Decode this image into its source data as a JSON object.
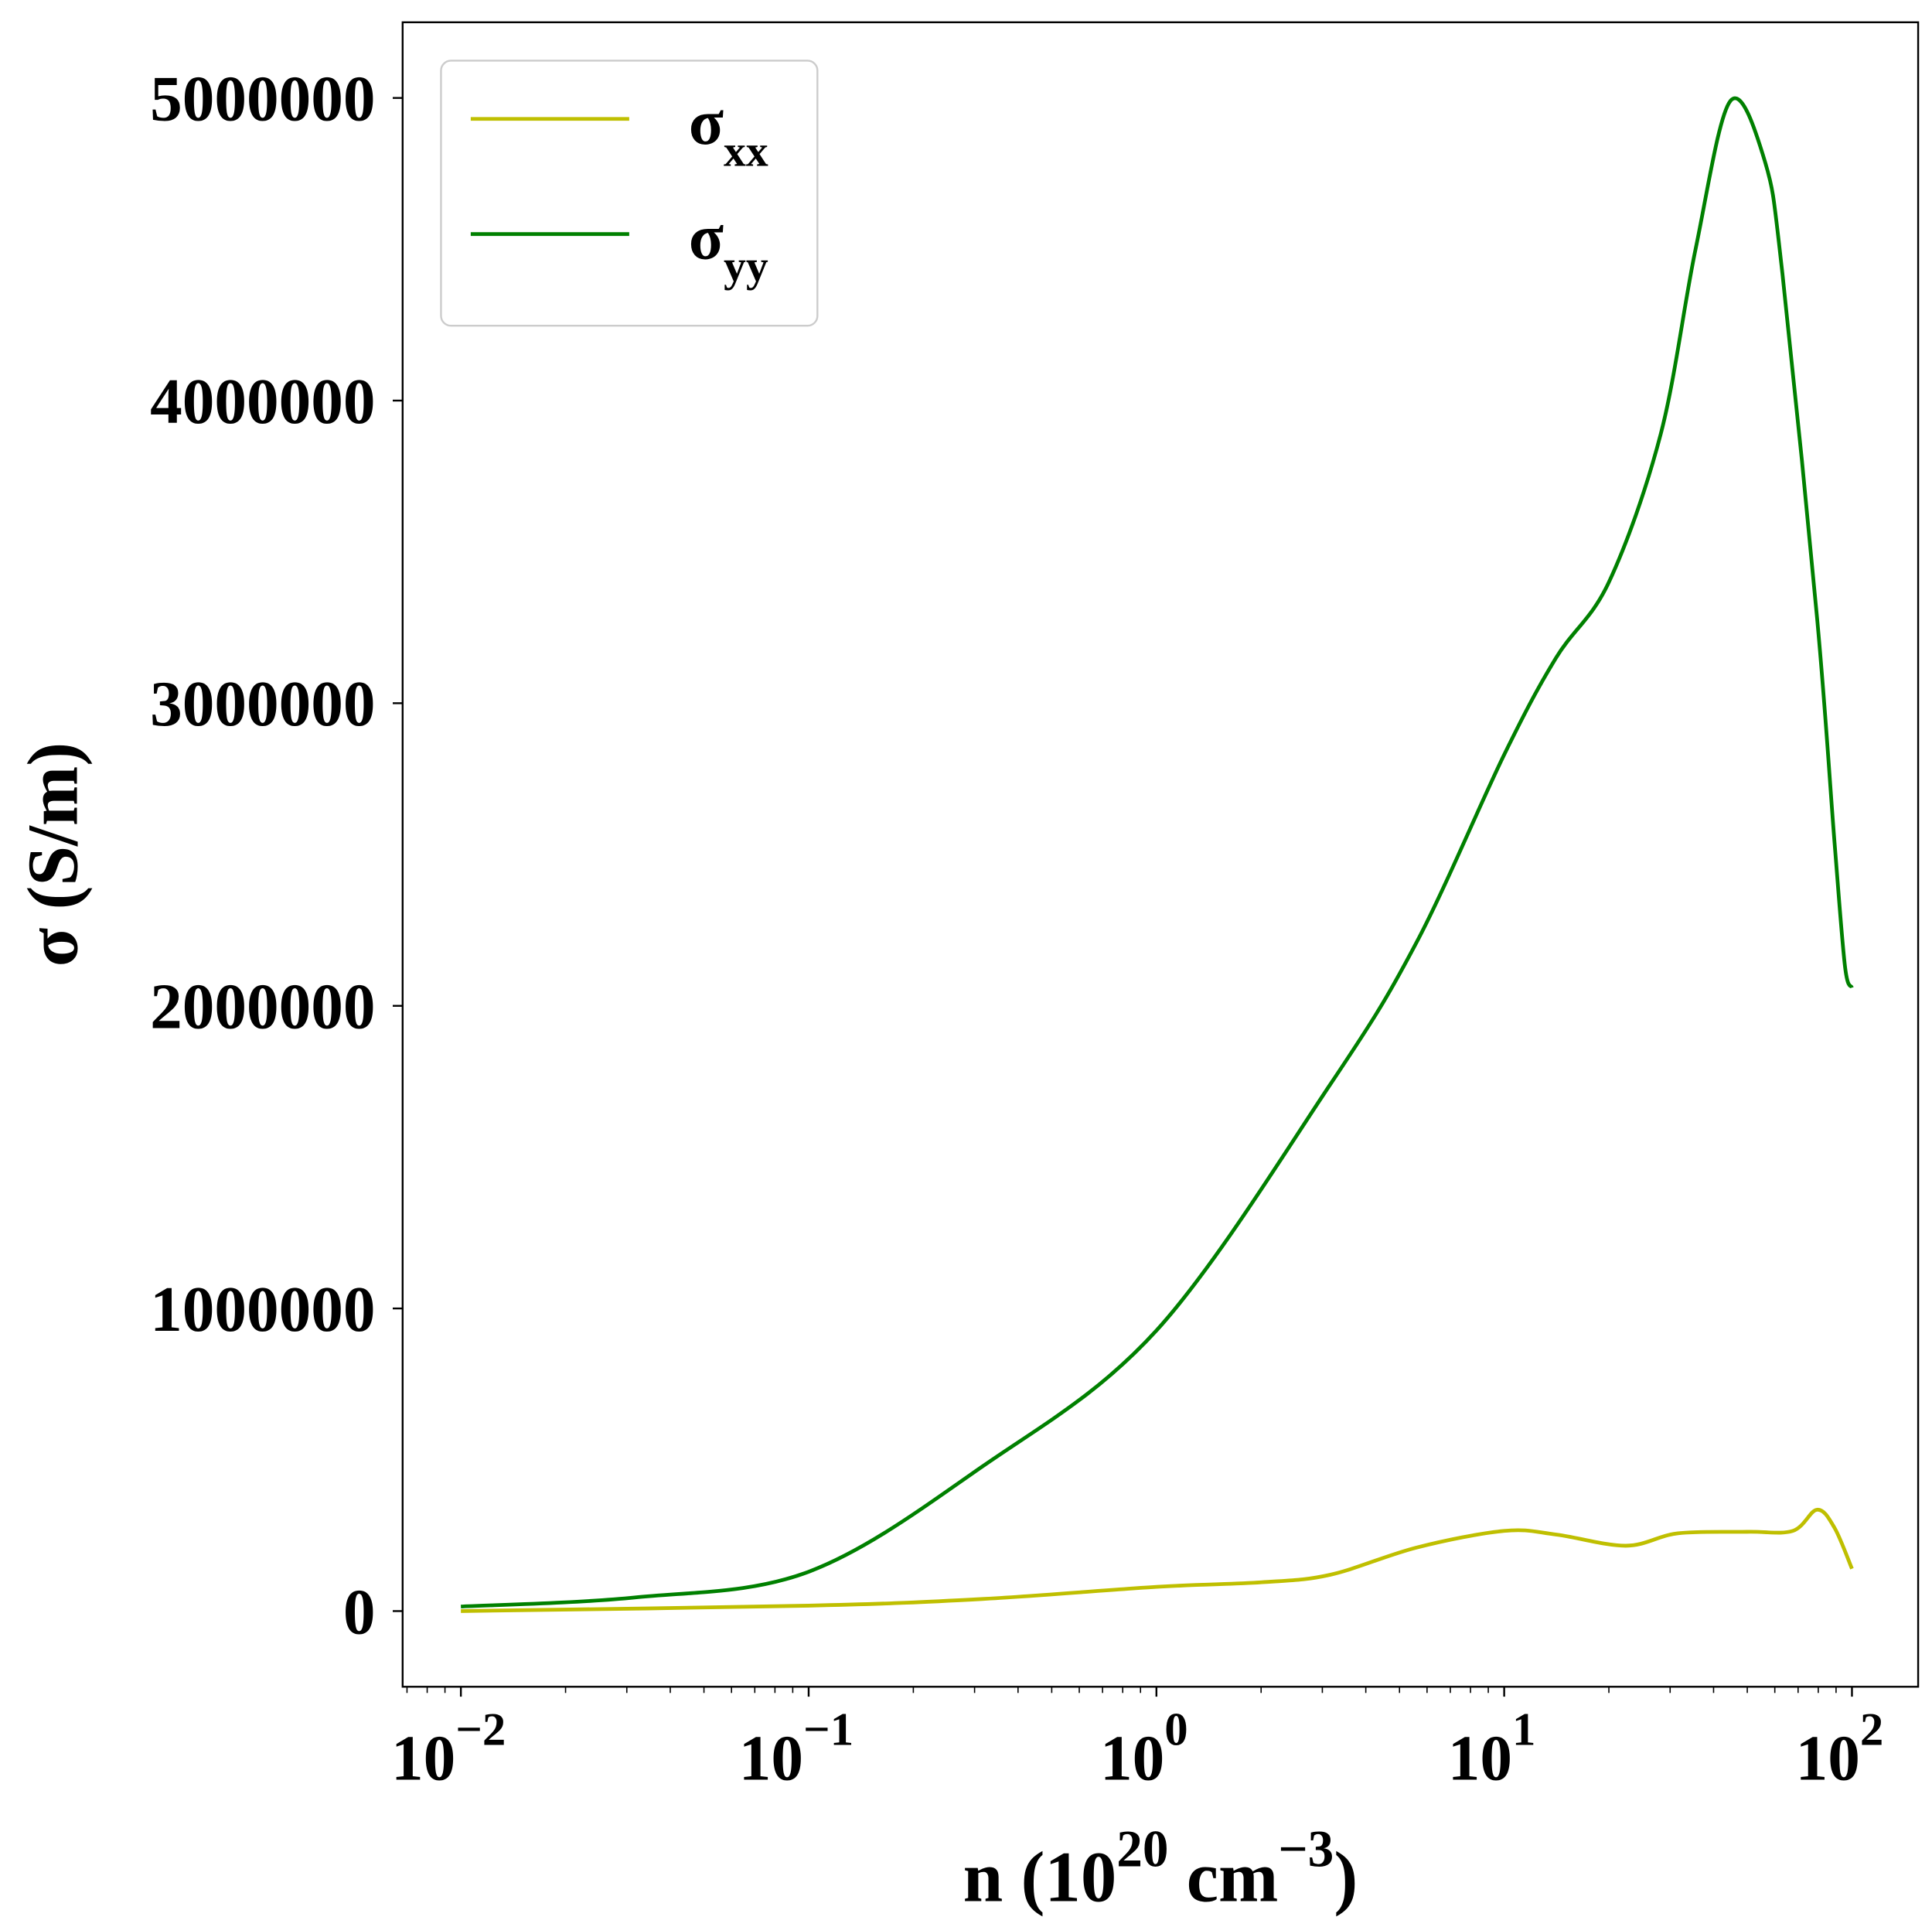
{
  "chart_data": {
    "type": "line",
    "xlabel": "n (10^20 cm^-3)",
    "xlabel_parts": {
      "base": "n (10",
      "exp1": "20",
      "mid": " cm",
      "exp2": "−3",
      "end": ")"
    },
    "ylabel": "σ (S/m)",
    "x_scale": "log",
    "xlim": [
      0.0068,
      155
    ],
    "ylim": [
      -250000,
      5250000
    ],
    "x_ticks": [
      {
        "base": "10",
        "exp": "−2",
        "value": 0.01
      },
      {
        "base": "10",
        "exp": "−1",
        "value": 0.1
      },
      {
        "base": "10",
        "exp": "0",
        "value": 1
      },
      {
        "base": "10",
        "exp": "1",
        "value": 10
      },
      {
        "base": "10",
        "exp": "2",
        "value": 100
      }
    ],
    "y_ticks": [
      "0",
      "1000000",
      "2000000",
      "3000000",
      "4000000",
      "5000000"
    ],
    "grid": false,
    "legend_position": "top-left",
    "series": [
      {
        "name": "σxx",
        "label_main": "σ",
        "label_sub": "xx",
        "color": "#bfbf00",
        "x": [
          0.01,
          0.1,
          0.316,
          1,
          2,
          3.16,
          5.6,
          10,
          14.1,
          22.4,
          31.6,
          50,
          67.6,
          79.4,
          89.1,
          100
        ],
        "y": [
          0,
          18000,
          40000,
          80000,
          95000,
          120000,
          210000,
          265000,
          253000,
          216000,
          257000,
          262000,
          265000,
          335000,
          275000,
          140000
        ]
      },
      {
        "name": "σyy",
        "label_main": "σ",
        "label_sub": "yy",
        "color": "#008000",
        "x": [
          0.01,
          0.0316,
          0.1,
          0.316,
          1,
          3.16,
          5.6,
          10,
          14.1,
          20,
          28.2,
          35.5,
          44.7,
          56.2,
          63.1,
          79.4,
          89.1,
          95.5,
          100
        ],
        "y": [
          15000,
          45000,
          130000,
          478000,
          927000,
          1740000,
          2210000,
          2830000,
          3150000,
          3400000,
          3890000,
          4500000,
          4990000,
          4790000,
          4420000,
          3280000,
          2540000,
          2130000,
          2060000
        ]
      }
    ]
  }
}
